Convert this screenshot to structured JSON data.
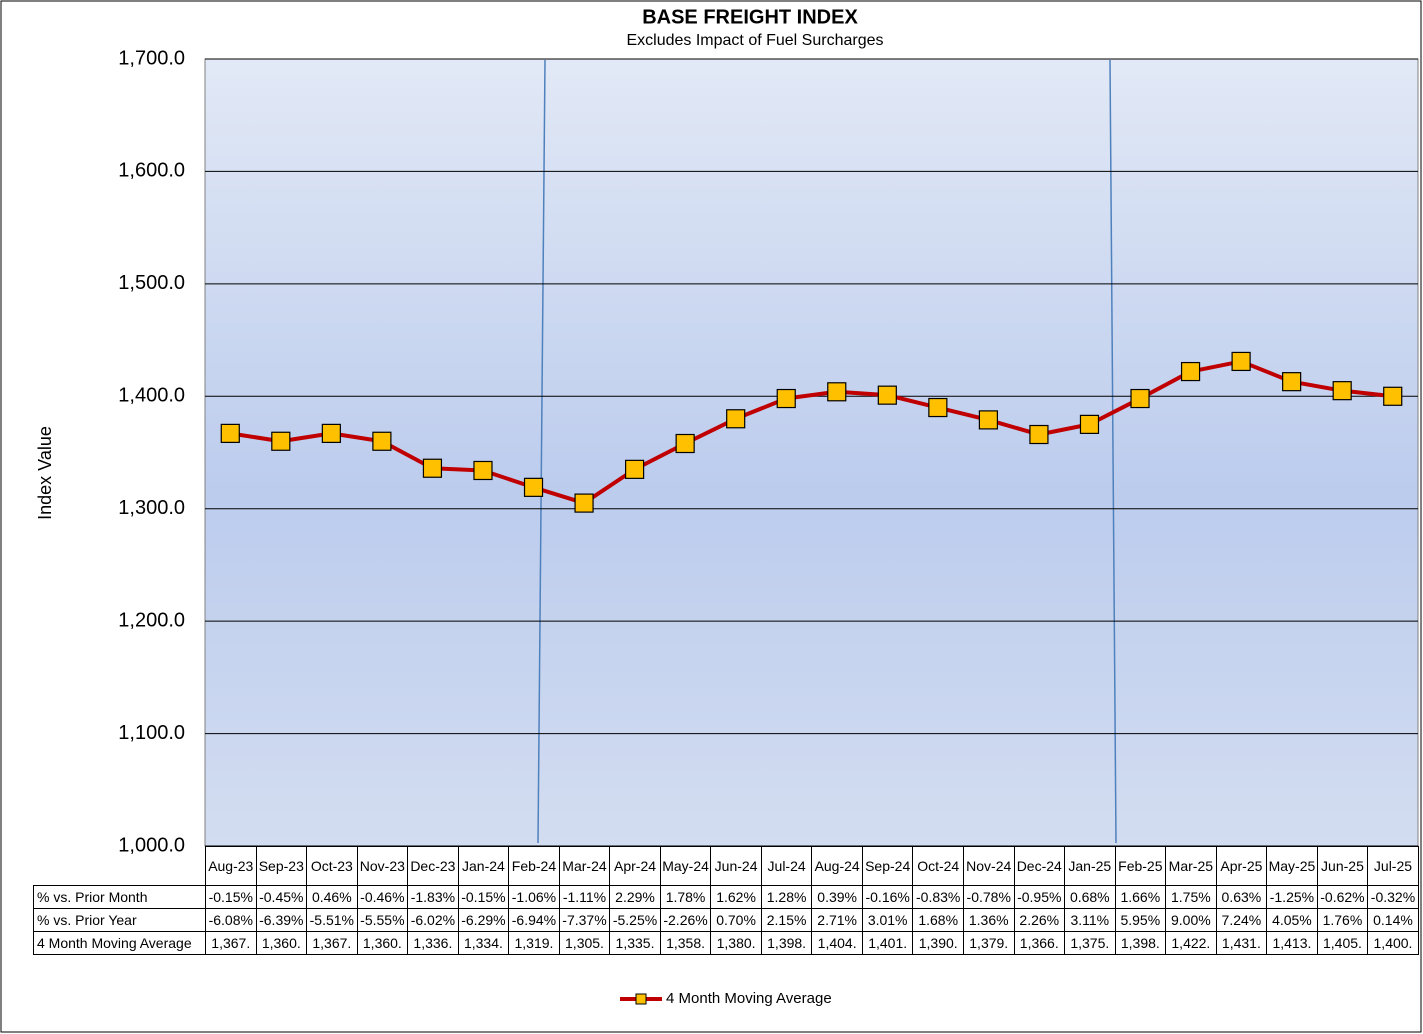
{
  "chart_data": {
    "type": "line",
    "title": "BASE FREIGHT INDEX",
    "subtitle": "Excludes Impact of Fuel Surcharges",
    "y_label": "Index Value",
    "categories": [
      "Aug-23",
      "Sep-23",
      "Oct-23",
      "Nov-23",
      "Dec-23",
      "Jan-24",
      "Feb-24",
      "Mar-24",
      "Apr-24",
      "May-24",
      "Jun-24",
      "Jul-24",
      "Aug-24",
      "Sep-24",
      "Oct-24",
      "Nov-24",
      "Dec-24",
      "Jan-25",
      "Feb-25",
      "Mar-25",
      "Apr-25",
      "May-25",
      "Jun-25",
      "Jul-25"
    ],
    "series": [
      {
        "name": "4 Month Moving Average",
        "color": "#c00000",
        "marker_color": "#ffc000",
        "values": [
          1367,
          1360,
          1367,
          1360,
          1336,
          1334,
          1319,
          1305,
          1335,
          1358,
          1380,
          1398,
          1404,
          1401,
          1390,
          1379,
          1366,
          1375,
          1398,
          1422,
          1431,
          1413,
          1405,
          1400
        ],
        "value_labels": [
          "1,367.",
          "1,360.",
          "1,367.",
          "1,360.",
          "1,336.",
          "1,334.",
          "1,319.",
          "1,305.",
          "1,335.",
          "1,358.",
          "1,380.",
          "1,398.",
          "1,404.",
          "1,401.",
          "1,390.",
          "1,379.",
          "1,366.",
          "1,375.",
          "1,398.",
          "1,422.",
          "1,431.",
          "1,413.",
          "1,405.",
          "1,400."
        ]
      }
    ],
    "ylim": [
      1000,
      1700
    ],
    "yticks": [
      {
        "value": 1000,
        "label": "1,000.0"
      },
      {
        "value": 1100,
        "label": "1,100.0"
      },
      {
        "value": 1200,
        "label": "1,200.0"
      },
      {
        "value": 1300,
        "label": "1,300.0"
      },
      {
        "value": 1400,
        "label": "1,400.0"
      },
      {
        "value": 1500,
        "label": "1,500.0"
      },
      {
        "value": 1600,
        "label": "1,600.0"
      },
      {
        "value": 1700,
        "label": "1,700.0"
      }
    ],
    "grid": true,
    "legend": "bottom",
    "data_table": [
      {
        "label": "% vs. Prior Month",
        "cells": [
          "-0.15%",
          "-0.45%",
          "0.46%",
          "-0.46%",
          "-1.83%",
          "-0.15%",
          "-1.06%",
          "-1.11%",
          "2.29%",
          "1.78%",
          "1.62%",
          "1.28%",
          "0.39%",
          "-0.16%",
          "-0.83%",
          "-0.78%",
          "-0.95%",
          "0.68%",
          "1.66%",
          "1.75%",
          "0.63%",
          "-1.25%",
          "-0.62%",
          "-0.32%"
        ]
      },
      {
        "label": "% vs. Prior Year",
        "cells": [
          "-6.08%",
          "-6.39%",
          "-5.51%",
          "-5.55%",
          "-6.02%",
          "-6.29%",
          "-6.94%",
          "-7.37%",
          "-5.25%",
          "-2.26%",
          "0.70%",
          "2.15%",
          "2.71%",
          "3.01%",
          "1.68%",
          "1.36%",
          "2.26%",
          "3.11%",
          "5.95%",
          "9.00%",
          "7.24%",
          "4.05%",
          "1.76%",
          "0.14%"
        ]
      }
    ]
  }
}
